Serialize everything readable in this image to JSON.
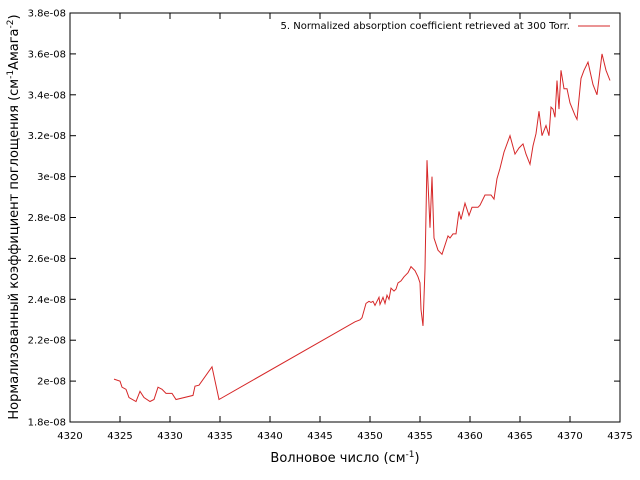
{
  "chart_data": {
    "type": "line",
    "xlabel": "Волновое число (см",
    "xlabel_sup": "-1",
    "xlabel_end": ")",
    "ylabel_main": "Нормализованный коэффициент поглощения (см",
    "ylabel_sup1": "-1",
    "ylabel_mid": "Амага",
    "ylabel_sup2": "-2",
    "ylabel_end": ")",
    "xlim": [
      4320,
      4375
    ],
    "ylim": [
      1.8e-08,
      3.8e-08
    ],
    "xticks": [
      "4320",
      "4325",
      "4330",
      "4335",
      "4340",
      "4345",
      "4350",
      "4355",
      "4360",
      "4365",
      "4370",
      "4375"
    ],
    "yticks": [
      "1.8e-08",
      "2e-08",
      "2.2e-08",
      "2.4e-08",
      "2.6e-08",
      "2.8e-08",
      "3e-08",
      "3.2e-08",
      "3.4e-08",
      "3.6e-08",
      "3.8e-08"
    ],
    "grid": false,
    "legend_position": "top-right",
    "series": [
      {
        "name": "5. Normalized absorption coefficient retrieved at 300 Torr.",
        "color": "#d62728",
        "x": [
          4324.4,
          4325.0,
          4325.2,
          4325.6,
          4325.9,
          4326.6,
          4327.0,
          4327.4,
          4328.0,
          4328.4,
          4328.8,
          4329.2,
          4329.6,
          4330.2,
          4330.6,
          4332.3,
          4332.5,
          4332.9,
          4334.2,
          4334.9,
          4348.5,
          4349.0,
          4349.2,
          4349.6,
          4349.9,
          4350.1,
          4350.3,
          4350.5,
          4350.7,
          4350.9,
          4351.0,
          4351.3,
          4351.5,
          4351.7,
          4351.9,
          4352.1,
          4352.4,
          4352.6,
          4352.8,
          4353.1,
          4353.4,
          4353.8,
          4354.1,
          4354.5,
          4354.8,
          4355.0,
          4355.1,
          4355.3,
          4355.5,
          4355.7,
          4356.0,
          4356.2,
          4356.4,
          4356.8,
          4357.2,
          4357.8,
          4358.0,
          4358.3,
          4358.6,
          4358.9,
          4359.1,
          4359.5,
          4359.9,
          4360.2,
          4360.8,
          4361.0,
          4361.5,
          4362.1,
          4362.4,
          4362.7,
          4363.0,
          4363.4,
          4364.0,
          4364.5,
          4364.9,
          4365.3,
          4365.6,
          4366.0,
          4366.3,
          4366.6,
          4366.9,
          4367.2,
          4367.6,
          4367.9,
          4368.1,
          4368.3,
          4368.5,
          4368.7,
          4368.9,
          4369.1,
          4369.4,
          4369.7,
          4370.0,
          4370.5,
          4370.7,
          4371.1,
          4371.4,
          4371.8,
          4372.3,
          4372.7,
          4373.2,
          4373.6,
          4374.0
        ],
        "y": [
          2.01e-08,
          2e-08,
          1.97e-08,
          1.96e-08,
          1.92e-08,
          1.9e-08,
          1.95e-08,
          1.92e-08,
          1.9e-08,
          1.91e-08,
          1.97e-08,
          1.96e-08,
          1.94e-08,
          1.94e-08,
          1.91e-08,
          1.93e-08,
          1.975e-08,
          1.98e-08,
          2.07e-08,
          1.91e-08,
          2.29e-08,
          2.3e-08,
          2.31e-08,
          2.38e-08,
          2.39e-08,
          2.385e-08,
          2.39e-08,
          2.37e-08,
          2.39e-08,
          2.41e-08,
          2.375e-08,
          2.41e-08,
          2.38e-08,
          2.42e-08,
          2.4e-08,
          2.455e-08,
          2.44e-08,
          2.45e-08,
          2.48e-08,
          2.49e-08,
          2.51e-08,
          2.53e-08,
          2.56e-08,
          2.54e-08,
          2.51e-08,
          2.48e-08,
          2.35e-08,
          2.27e-08,
          2.55e-08,
          3.08e-08,
          2.75e-08,
          3e-08,
          2.7e-08,
          2.64e-08,
          2.62e-08,
          2.71e-08,
          2.7e-08,
          2.72e-08,
          2.72e-08,
          2.83e-08,
          2.79e-08,
          2.87e-08,
          2.81e-08,
          2.85e-08,
          2.85e-08,
          2.86e-08,
          2.91e-08,
          2.91e-08,
          2.89e-08,
          2.99e-08,
          3.04e-08,
          3.12e-08,
          3.2e-08,
          3.11e-08,
          3.14e-08,
          3.16e-08,
          3.11e-08,
          3.06e-08,
          3.15e-08,
          3.21e-08,
          3.32e-08,
          3.2e-08,
          3.25e-08,
          3.2e-08,
          3.34e-08,
          3.33e-08,
          3.29e-08,
          3.47e-08,
          3.33e-08,
          3.52e-08,
          3.43e-08,
          3.43e-08,
          3.36e-08,
          3.3e-08,
          3.28e-08,
          3.48e-08,
          3.52e-08,
          3.56e-08,
          3.45e-08,
          3.4e-08,
          3.6e-08,
          3.52e-08,
          3.47e-08
        ]
      }
    ]
  }
}
